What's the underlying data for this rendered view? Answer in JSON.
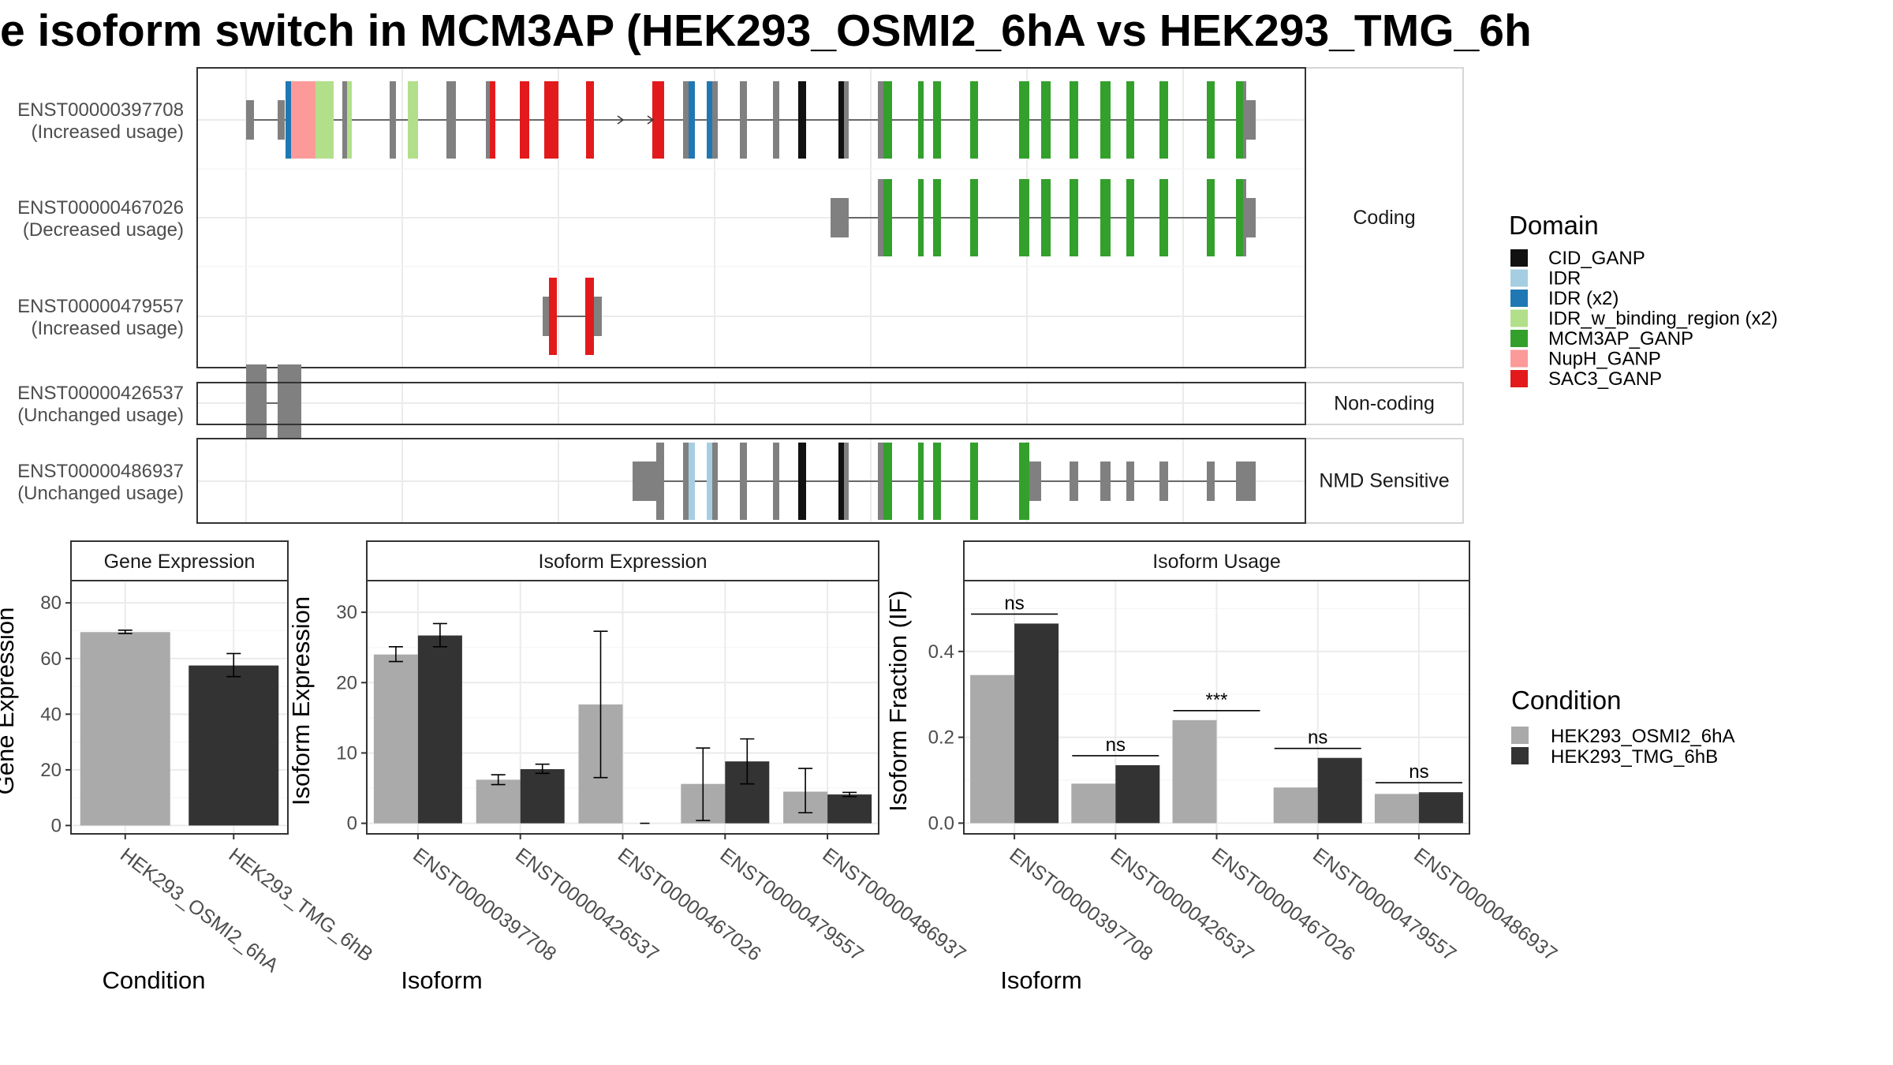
{
  "title": "e isoform switch in MCM3AP (HEK293_OSMI2_6hA vs HEK293_TMG_6h",
  "colors": {
    "CID_GANP": "#111111",
    "IDR": "#a6cee3",
    "IDR (x2)": "#1f78b4",
    "IDR_w_binding_region (x2)": "#b2df8a",
    "MCM3AP_GANP": "#33a02c",
    "NupH_GANP": "#fb9a99",
    "SAC3_GANP": "#e31a1c",
    "exon": "#808080",
    "cond1": "#aaaaaa",
    "cond2": "#333333"
  },
  "structure": {
    "facets": [
      "Coding",
      "Non-coding",
      "NMD Sensitive"
    ],
    "transcripts": [
      {
        "id": "ENST00000397708",
        "label": "(Increased usage)",
        "facet": "Coding"
      },
      {
        "id": "ENST00000467026",
        "label": "(Decreased usage)",
        "facet": "Coding"
      },
      {
        "id": "ENST00000479557",
        "label": "(Increased usage)",
        "facet": "Coding"
      },
      {
        "id": "ENST00000426537",
        "label": "(Unchanged usage)",
        "facet": "Non-coding"
      },
      {
        "id": "ENST00000486937",
        "label": "(Unchanged usage)",
        "facet": "NMD Sensitive"
      }
    ]
  },
  "domain_legend": {
    "title": "Domain",
    "items": [
      "CID_GANP",
      "IDR",
      "IDR (x2)",
      "IDR_w_binding_region (x2)",
      "MCM3AP_GANP",
      "NupH_GANP",
      "SAC3_GANP"
    ]
  },
  "condition_legend": {
    "title": "Condition",
    "items": [
      "HEK293_OSMI2_6hA",
      "HEK293_TMG_6hB"
    ]
  },
  "chart_data": [
    {
      "type": "bar",
      "title": "Gene Expression",
      "xlabel": "Condition",
      "ylabel": "Gene Expression",
      "categories": [
        "HEK293_OSMI2_6hA",
        "HEK293_TMG_6hB"
      ],
      "values": [
        69.5,
        57.5
      ],
      "errors": [
        [
          69.0,
          70.2
        ],
        [
          53.5,
          61.8
        ]
      ],
      "ylim": [
        -3,
        88
      ],
      "yticks": [
        0,
        20,
        40,
        60,
        80
      ]
    },
    {
      "type": "bar",
      "title": "Isoform Expression",
      "xlabel": "Isoform",
      "ylabel": "Isoform Expression",
      "categories": [
        "ENST00000397708",
        "ENST00000426537",
        "ENST00000467026",
        "ENST00000479557",
        "ENST00000486937"
      ],
      "series": [
        {
          "name": "HEK293_OSMI2_6hA",
          "values": [
            24.0,
            6.2,
            16.9,
            5.6,
            4.5
          ],
          "errors": [
            [
              23.0,
              25.1
            ],
            [
              5.5,
              6.9
            ],
            [
              6.5,
              27.3
            ],
            [
              0.4,
              10.7
            ],
            [
              1.5,
              7.8
            ]
          ]
        },
        {
          "name": "HEK293_TMG_6hB",
          "values": [
            26.7,
            7.7,
            0.0,
            8.8,
            4.1
          ],
          "errors": [
            [
              25.1,
              28.4
            ],
            [
              7.1,
              8.4
            ],
            [
              0.0,
              0.0
            ],
            [
              5.6,
              12.0
            ],
            [
              3.8,
              4.4
            ]
          ]
        }
      ],
      "ylim": [
        -1.5,
        34.5
      ],
      "yticks": [
        0,
        10,
        20,
        30
      ]
    },
    {
      "type": "bar",
      "title": "Isoform Usage",
      "xlabel": "Isoform",
      "ylabel": "Isoform Fraction (IF)",
      "categories": [
        "ENST00000397708",
        "ENST00000426537",
        "ENST00000467026",
        "ENST00000479557",
        "ENST00000486937"
      ],
      "series": [
        {
          "name": "HEK293_OSMI2_6hA",
          "values": [
            0.345,
            0.092,
            0.24,
            0.083,
            0.068
          ]
        },
        {
          "name": "HEK293_TMG_6hB",
          "values": [
            0.465,
            0.135,
            0.0,
            0.152,
            0.072
          ]
        }
      ],
      "significance": [
        "ns",
        "ns",
        "***",
        "ns",
        "ns"
      ],
      "ylim": [
        -0.025,
        0.565
      ],
      "yticks": [
        0.0,
        0.2,
        0.4
      ],
      "ytick_labels": [
        "0.0",
        "0.2",
        "0.4"
      ]
    }
  ]
}
